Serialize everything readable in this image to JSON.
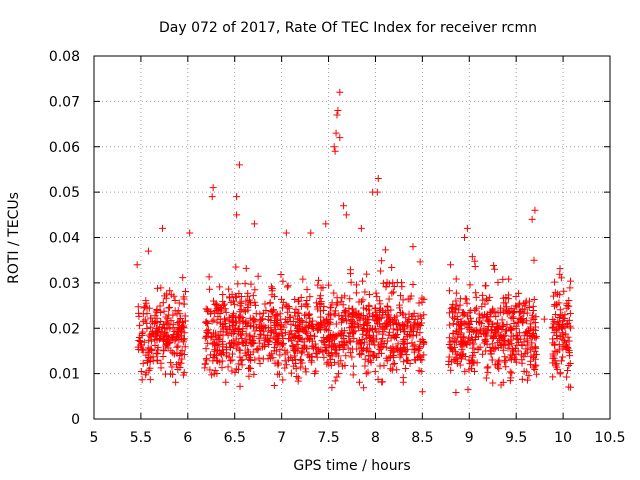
{
  "chart_data": {
    "type": "scatter",
    "title": "Day 072 of 2017, Rate Of TEC Index for receiver rcmn",
    "xlabel": "GPS time / hours",
    "ylabel": "ROTI / TECUs",
    "xlim": [
      5,
      10.5
    ],
    "ylim": [
      0,
      0.08
    ],
    "x_ticks": [
      "5",
      "5.5",
      "6",
      "6.5",
      "7",
      "7.5",
      "8",
      "8.5",
      "9",
      "9.5",
      "10",
      "10.5"
    ],
    "y_ticks": [
      "0",
      "0.01",
      "0.02",
      "0.03",
      "0.04",
      "0.05",
      "0.06",
      "0.07",
      "0.08"
    ],
    "grid": true,
    "marker": "+",
    "series_color": "#ff0000",
    "data_gaps_hours": [
      [
        5.0,
        5.47
      ],
      [
        5.98,
        6.18
      ],
      [
        8.52,
        8.78
      ],
      [
        9.72,
        9.88
      ],
      [
        10.08,
        10.5
      ]
    ],
    "typical_range": [
      0.005,
      0.03
    ],
    "notable_points": [
      {
        "x": 5.46,
        "y": 0.034
      },
      {
        "x": 5.58,
        "y": 0.037
      },
      {
        "x": 5.73,
        "y": 0.042
      },
      {
        "x": 6.02,
        "y": 0.041
      },
      {
        "x": 6.27,
        "y": 0.051
      },
      {
        "x": 6.26,
        "y": 0.049
      },
      {
        "x": 6.52,
        "y": 0.049
      },
      {
        "x": 6.55,
        "y": 0.056
      },
      {
        "x": 6.52,
        "y": 0.045
      },
      {
        "x": 6.71,
        "y": 0.043
      },
      {
        "x": 7.05,
        "y": 0.041
      },
      {
        "x": 7.31,
        "y": 0.041
      },
      {
        "x": 7.47,
        "y": 0.043
      },
      {
        "x": 7.57,
        "y": 0.059
      },
      {
        "x": 7.56,
        "y": 0.06
      },
      {
        "x": 7.58,
        "y": 0.063
      },
      {
        "x": 7.59,
        "y": 0.067
      },
      {
        "x": 7.6,
        "y": 0.068
      },
      {
        "x": 7.62,
        "y": 0.072
      },
      {
        "x": 7.62,
        "y": 0.062
      },
      {
        "x": 7.66,
        "y": 0.047
      },
      {
        "x": 7.69,
        "y": 0.045
      },
      {
        "x": 7.85,
        "y": 0.042
      },
      {
        "x": 7.97,
        "y": 0.05
      },
      {
        "x": 8.02,
        "y": 0.05
      },
      {
        "x": 8.03,
        "y": 0.053
      },
      {
        "x": 8.4,
        "y": 0.038
      },
      {
        "x": 8.5,
        "y": 0.006
      },
      {
        "x": 8.8,
        "y": 0.034
      },
      {
        "x": 8.95,
        "y": 0.04
      },
      {
        "x": 8.98,
        "y": 0.042
      },
      {
        "x": 9.27,
        "y": 0.033
      },
      {
        "x": 9.67,
        "y": 0.044
      },
      {
        "x": 9.7,
        "y": 0.046
      },
      {
        "x": 9.69,
        "y": 0.035
      },
      {
        "x": 9.8,
        "y": 0.022
      },
      {
        "x": 10.02,
        "y": 0.023
      },
      {
        "x": 10.08,
        "y": 0.007
      }
    ]
  }
}
